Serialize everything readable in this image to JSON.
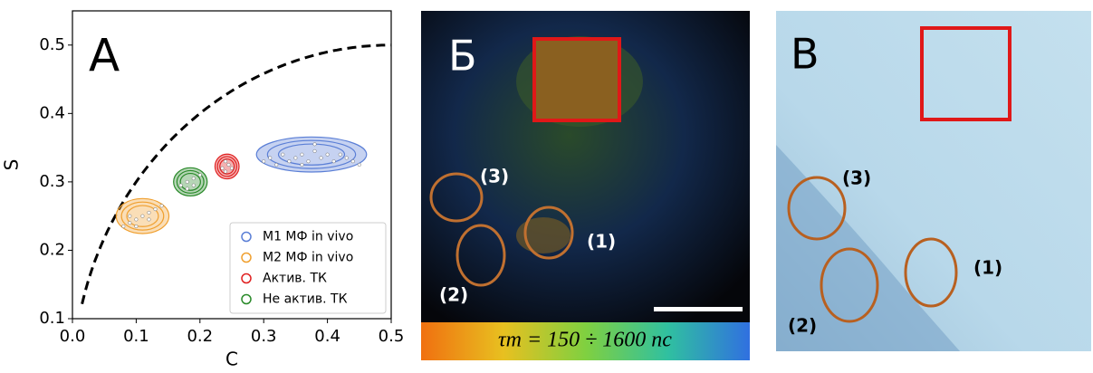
{
  "chart_data": {
    "type": "scatter",
    "panel_label": "А",
    "xlabel": "C",
    "ylabel": "S",
    "xlim": [
      0,
      0.5
    ],
    "ylim": [
      0.1,
      0.55
    ],
    "xticks": [
      {
        "value": 0,
        "label": "0.0"
      },
      0.1,
      0.2,
      0.3,
      0.4,
      0.5
    ],
    "yticks": [
      0.1,
      0.2,
      0.3,
      0.4,
      0.5
    ],
    "legend": "lower right",
    "series": [
      {
        "name": "M1 МФ in vivo",
        "color": "#5b7fd6",
        "x": [
          0.3,
          0.31,
          0.32,
          0.33,
          0.34,
          0.35,
          0.36,
          0.37,
          0.38,
          0.39,
          0.4,
          0.41,
          0.42,
          0.43,
          0.44,
          0.45,
          0.38,
          0.36
        ],
        "y": [
          0.33,
          0.335,
          0.325,
          0.34,
          0.33,
          0.335,
          0.34,
          0.33,
          0.345,
          0.335,
          0.34,
          0.33,
          0.34,
          0.335,
          0.33,
          0.325,
          0.355,
          0.325
        ]
      },
      {
        "name": "M2 МФ in vivo",
        "color": "#f0a030",
        "x": [
          0.08,
          0.09,
          0.1,
          0.11,
          0.12,
          0.13,
          0.14,
          0.1,
          0.12,
          0.09
        ],
        "y": [
          0.235,
          0.24,
          0.245,
          0.25,
          0.255,
          0.26,
          0.265,
          0.235,
          0.245,
          0.25
        ]
      },
      {
        "name": "Актив. ТК",
        "color": "#e02020",
        "x": [
          0.235,
          0.24,
          0.245,
          0.25,
          0.24
        ],
        "y": [
          0.32,
          0.33,
          0.325,
          0.32,
          0.315
        ]
      },
      {
        "name": "Не актив. ТК",
        "color": "#2a8a2a",
        "x": [
          0.17,
          0.18,
          0.19,
          0.2,
          0.18,
          0.19
        ],
        "y": [
          0.295,
          0.3,
          0.305,
          0.31,
          0.29,
          0.295
        ]
      }
    ]
  },
  "panel_b": {
    "label": "Б",
    "regions": [
      "(1)",
      "(2)",
      "(3)"
    ],
    "colorbar_label": "τm = 150 ÷ 1600 пс"
  },
  "panel_c": {
    "label": "В",
    "regions": [
      "(1)",
      "(2)",
      "(3)"
    ]
  }
}
